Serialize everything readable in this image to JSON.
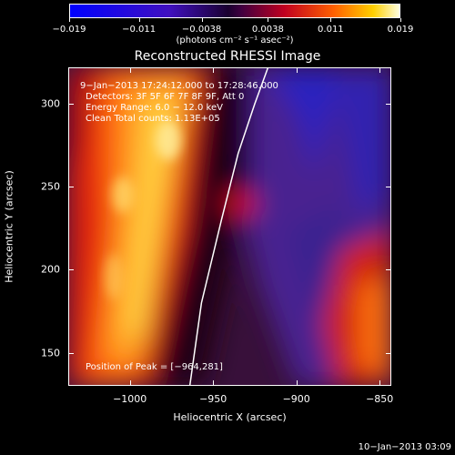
{
  "chart_data": {
    "type": "heatmap",
    "title": "Reconstructed RHESSI Image",
    "xlabel": "Heliocentric X (arcsec)",
    "ylabel": "Heliocentric Y (arcsec)",
    "xlim": [
      -1037,
      -843
    ],
    "ylim": [
      130,
      322
    ],
    "xticks": [
      -1000,
      -950,
      -900,
      -850
    ],
    "xtick_labels": [
      "−1000",
      "−950",
      "−900",
      "−850"
    ],
    "yticks": [
      150,
      200,
      250,
      300
    ],
    "ytick_labels": [
      "150",
      "200",
      "250",
      "300"
    ],
    "colorbar": {
      "min": -0.019,
      "max": 0.019,
      "ticks": [
        -0.019,
        -0.011,
        -0.0038,
        0.0038,
        0.011,
        0.019
      ],
      "tick_labels": [
        "−0.019",
        "−0.011",
        "−0.0038",
        "0.0038",
        "0.011",
        "0.019"
      ],
      "unit_label": "(photons cm⁻² s⁻¹ asec⁻²)"
    },
    "annotations": {
      "time_range": "9−Jan−2013 17:24:12.000 to 17:28:46.000",
      "detectors": "Detectors: 3F 5F 6F 7F 8F 9F, Att 0",
      "energy": "Energy Range: 6.0 − 12.0 keV",
      "clean": "Clean    Total counts: 1.13E+05",
      "peak": "Position of Peak = [−964,281]"
    },
    "peak_position": [
      -964,
      281
    ],
    "limb_curve": [
      [
        -964,
        130
      ],
      [
        -957,
        180
      ],
      [
        -945,
        230
      ],
      [
        -935,
        270
      ],
      [
        -925,
        300
      ],
      [
        -917,
        322
      ]
    ]
  },
  "footer": "10−Jan−2013 03:09"
}
